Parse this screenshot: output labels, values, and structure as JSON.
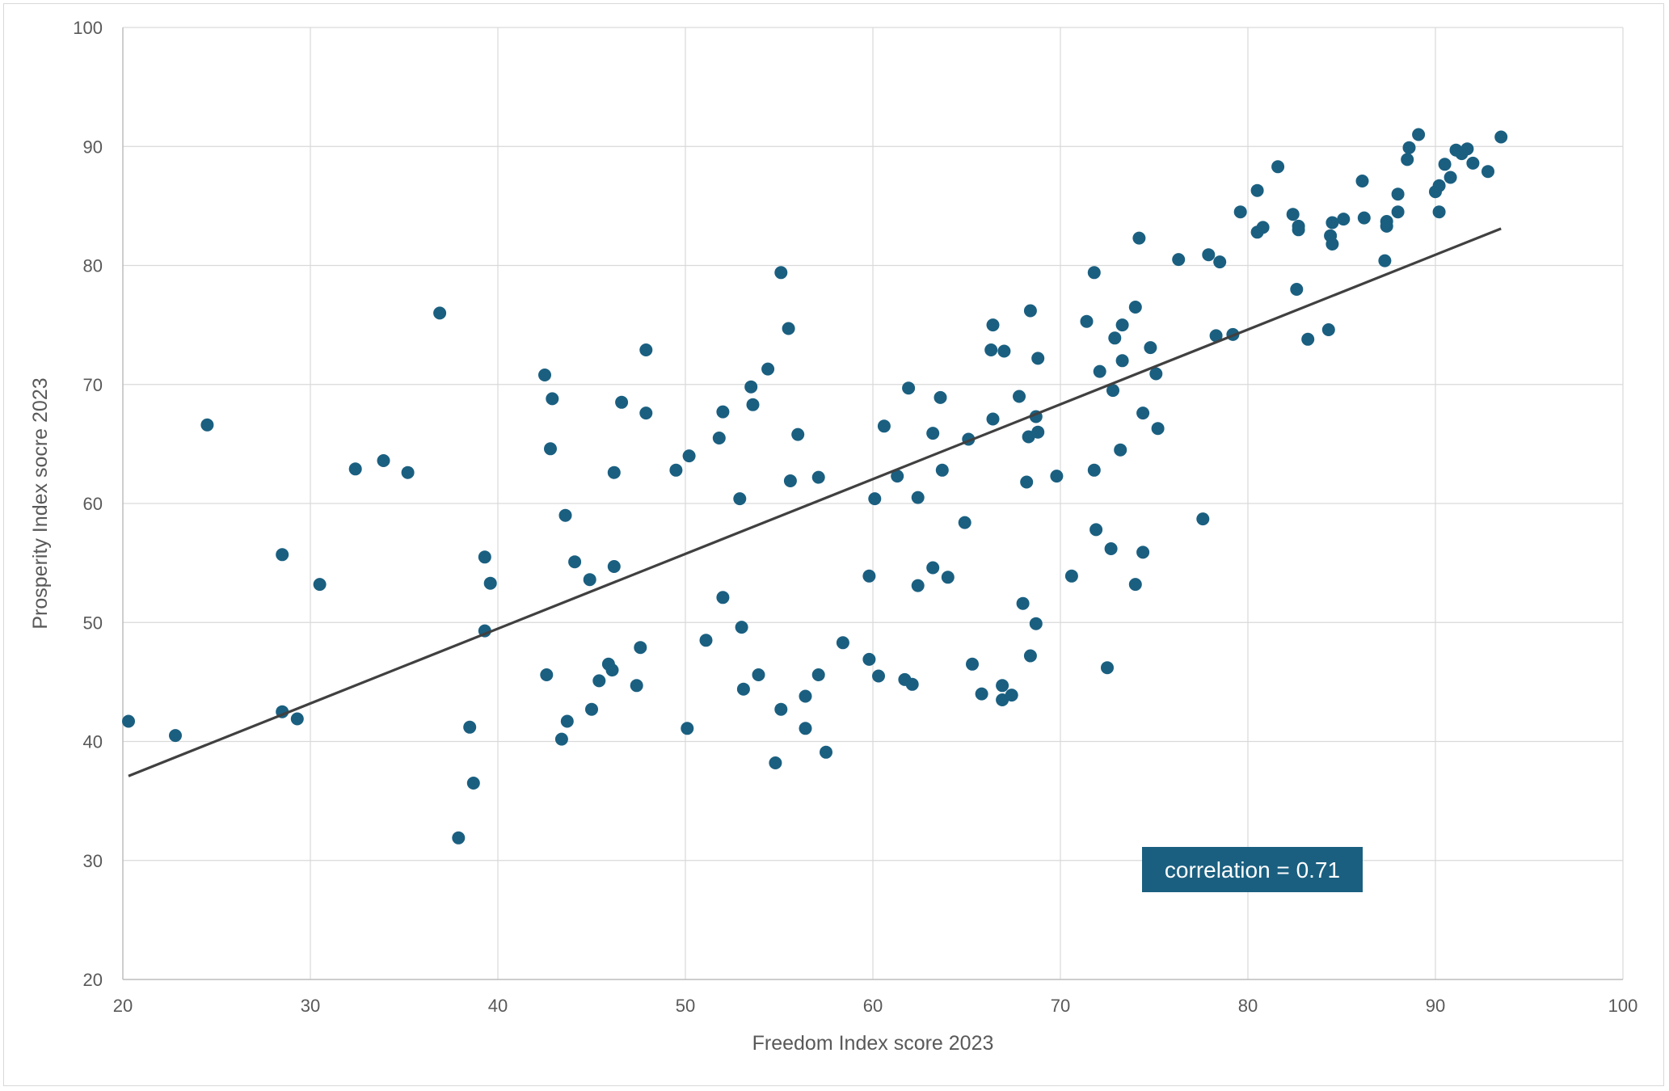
{
  "chart_data": {
    "type": "scatter",
    "title": "",
    "xlabel": "Freedom Index score 2023",
    "ylabel": "Prosperity Index socre 2023",
    "xlim": [
      20,
      100
    ],
    "ylim": [
      20,
      100
    ],
    "xticks": [
      20,
      30,
      40,
      50,
      60,
      70,
      80,
      90,
      100
    ],
    "yticks": [
      20,
      30,
      40,
      50,
      60,
      70,
      80,
      90,
      100
    ],
    "grid": true,
    "legend": "none",
    "marker_color": "#1a5f80",
    "trendline_color": "#404040",
    "annotation": {
      "text": "correlation = 0.71",
      "position": "bottom-right",
      "background": "#1a5f80"
    },
    "trendline": {
      "x": [
        20.3,
        93.5
      ],
      "y": [
        37.1,
        83.1
      ]
    },
    "series": [
      {
        "points": [
          [
            20.3,
            41.7
          ],
          [
            22.8,
            40.5
          ],
          [
            24.5,
            66.6
          ],
          [
            28.5,
            55.7
          ],
          [
            28.5,
            42.5
          ],
          [
            29.3,
            41.9
          ],
          [
            30.5,
            53.2
          ],
          [
            32.4,
            62.9
          ],
          [
            33.9,
            63.6
          ],
          [
            35.2,
            62.6
          ],
          [
            36.9,
            76.0
          ],
          [
            37.9,
            31.9
          ],
          [
            38.5,
            41.2
          ],
          [
            38.7,
            36.5
          ],
          [
            39.3,
            55.5
          ],
          [
            39.3,
            49.3
          ],
          [
            39.6,
            53.3
          ],
          [
            42.5,
            70.8
          ],
          [
            42.6,
            45.6
          ],
          [
            42.8,
            64.6
          ],
          [
            42.9,
            68.8
          ],
          [
            43.4,
            40.2
          ],
          [
            43.6,
            59.0
          ],
          [
            43.7,
            41.7
          ],
          [
            44.1,
            55.1
          ],
          [
            44.9,
            53.6
          ],
          [
            45.0,
            42.7
          ],
          [
            45.4,
            45.1
          ],
          [
            45.9,
            46.5
          ],
          [
            46.1,
            46.0
          ],
          [
            46.2,
            62.6
          ],
          [
            46.2,
            54.7
          ],
          [
            46.6,
            68.5
          ],
          [
            47.4,
            44.7
          ],
          [
            47.6,
            47.9
          ],
          [
            47.9,
            72.9
          ],
          [
            47.9,
            67.6
          ],
          [
            49.5,
            62.8
          ],
          [
            50.1,
            41.1
          ],
          [
            50.2,
            64.0
          ],
          [
            51.1,
            48.5
          ],
          [
            51.8,
            65.5
          ],
          [
            52.0,
            67.7
          ],
          [
            52.0,
            52.1
          ],
          [
            52.9,
            60.4
          ],
          [
            53.0,
            49.6
          ],
          [
            53.1,
            44.4
          ],
          [
            53.5,
            69.8
          ],
          [
            53.6,
            68.3
          ],
          [
            53.9,
            45.6
          ],
          [
            54.4,
            71.3
          ],
          [
            54.8,
            38.2
          ],
          [
            55.1,
            79.4
          ],
          [
            55.1,
            42.7
          ],
          [
            55.5,
            74.7
          ],
          [
            55.6,
            61.9
          ],
          [
            56.0,
            65.8
          ],
          [
            56.4,
            43.8
          ],
          [
            56.4,
            41.1
          ],
          [
            57.1,
            62.2
          ],
          [
            57.1,
            45.6
          ],
          [
            57.5,
            39.1
          ],
          [
            58.4,
            48.3
          ],
          [
            59.8,
            53.9
          ],
          [
            59.8,
            46.9
          ],
          [
            60.1,
            60.4
          ],
          [
            60.3,
            45.5
          ],
          [
            60.6,
            66.5
          ],
          [
            61.3,
            62.3
          ],
          [
            61.7,
            45.2
          ],
          [
            61.9,
            69.7
          ],
          [
            62.1,
            44.8
          ],
          [
            62.4,
            60.5
          ],
          [
            62.4,
            53.1
          ],
          [
            63.2,
            65.9
          ],
          [
            63.2,
            54.6
          ],
          [
            63.6,
            68.9
          ],
          [
            63.7,
            62.8
          ],
          [
            64.0,
            53.8
          ],
          [
            64.9,
            58.4
          ],
          [
            65.1,
            65.4
          ],
          [
            65.3,
            46.5
          ],
          [
            65.8,
            44.0
          ],
          [
            66.3,
            72.9
          ],
          [
            66.4,
            75.0
          ],
          [
            66.4,
            67.1
          ],
          [
            66.9,
            44.7
          ],
          [
            66.9,
            43.5
          ],
          [
            67.0,
            72.8
          ],
          [
            67.4,
            43.9
          ],
          [
            67.8,
            69.0
          ],
          [
            68.0,
            51.6
          ],
          [
            68.2,
            61.8
          ],
          [
            68.3,
            65.6
          ],
          [
            68.4,
            76.2
          ],
          [
            68.4,
            47.2
          ],
          [
            68.7,
            67.3
          ],
          [
            68.7,
            49.9
          ],
          [
            68.8,
            72.2
          ],
          [
            68.8,
            66.0
          ],
          [
            69.8,
            62.3
          ],
          [
            70.6,
            53.9
          ],
          [
            71.4,
            75.3
          ],
          [
            71.8,
            79.4
          ],
          [
            71.8,
            62.8
          ],
          [
            71.9,
            57.8
          ],
          [
            72.1,
            71.1
          ],
          [
            72.5,
            46.2
          ],
          [
            72.7,
            56.2
          ],
          [
            72.8,
            69.5
          ],
          [
            72.9,
            73.9
          ],
          [
            73.2,
            64.5
          ],
          [
            73.3,
            72.0
          ],
          [
            73.3,
            75.0
          ],
          [
            74.0,
            53.2
          ],
          [
            74.0,
            76.5
          ],
          [
            74.2,
            82.3
          ],
          [
            74.4,
            67.6
          ],
          [
            74.4,
            55.9
          ],
          [
            74.8,
            73.1
          ],
          [
            75.1,
            70.9
          ],
          [
            75.2,
            66.3
          ],
          [
            76.3,
            80.5
          ],
          [
            77.6,
            58.7
          ],
          [
            77.9,
            80.9
          ],
          [
            78.3,
            74.1
          ],
          [
            78.5,
            80.3
          ],
          [
            79.2,
            74.2
          ],
          [
            79.6,
            84.5
          ],
          [
            80.5,
            82.8
          ],
          [
            80.5,
            86.3
          ],
          [
            80.8,
            83.2
          ],
          [
            81.6,
            88.3
          ],
          [
            82.4,
            84.3
          ],
          [
            82.6,
            78.0
          ],
          [
            82.7,
            83.3
          ],
          [
            82.7,
            83.0
          ],
          [
            83.2,
            73.8
          ],
          [
            84.3,
            74.6
          ],
          [
            84.4,
            82.5
          ],
          [
            84.5,
            83.6
          ],
          [
            84.5,
            81.8
          ],
          [
            85.1,
            83.9
          ],
          [
            86.1,
            87.1
          ],
          [
            86.2,
            84.0
          ],
          [
            87.3,
            80.4
          ],
          [
            87.4,
            83.7
          ],
          [
            87.4,
            83.3
          ],
          [
            88.0,
            86.0
          ],
          [
            88.0,
            84.5
          ],
          [
            88.5,
            88.9
          ],
          [
            88.6,
            89.9
          ],
          [
            89.1,
            91.0
          ],
          [
            90.0,
            86.2
          ],
          [
            90.2,
            86.7
          ],
          [
            90.2,
            84.5
          ],
          [
            90.5,
            88.5
          ],
          [
            90.8,
            87.4
          ],
          [
            91.1,
            89.7
          ],
          [
            91.4,
            89.4
          ],
          [
            91.7,
            89.8
          ],
          [
            92.0,
            88.6
          ],
          [
            92.8,
            87.9
          ],
          [
            93.5,
            90.8
          ]
        ]
      }
    ]
  }
}
